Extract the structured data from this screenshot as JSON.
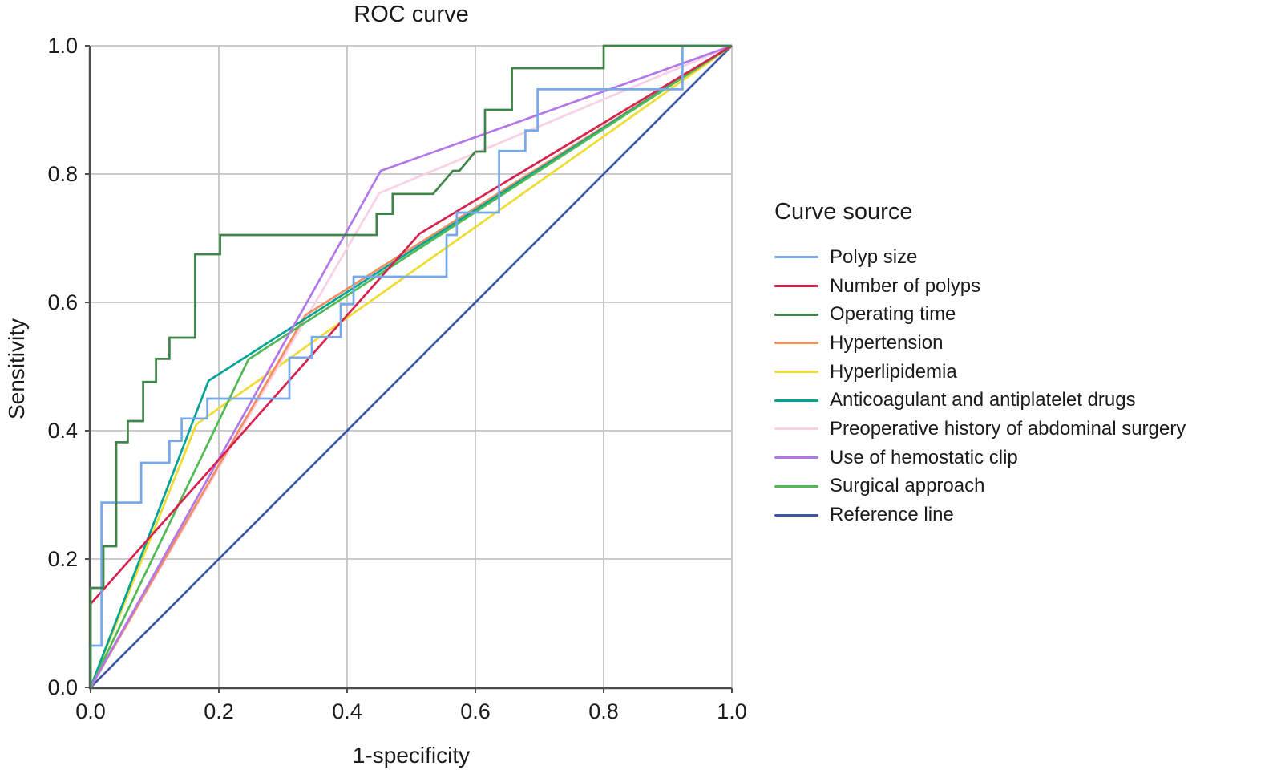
{
  "title": "ROC curve",
  "x_axis": {
    "label": "1-specificity",
    "tick_labels": [
      "0.0",
      "0.2",
      "0.4",
      "0.6",
      "0.8",
      "1.0"
    ]
  },
  "y_axis": {
    "label": "Sensitivity",
    "tick_labels": [
      "0.0",
      "0.2",
      "0.4",
      "0.6",
      "0.8",
      "1.0"
    ]
  },
  "legend": {
    "title": "Curve source",
    "items": [
      {
        "label": "Polyp size",
        "color": "#76A9EC"
      },
      {
        "label": "Number of polyps",
        "color": "#D7224D"
      },
      {
        "label": "Operating time",
        "color": "#3E8547"
      },
      {
        "label": "Hypertension",
        "color": "#F28E62"
      },
      {
        "label": "Hyperlipidemia",
        "color": "#EEDC30"
      },
      {
        "label": "Anticoagulant and antiplatelet drugs",
        "color": "#00A396"
      },
      {
        "label": "Preoperative history of abdominal surgery",
        "color": "#F9D0E4"
      },
      {
        "label": "Use of hemostatic clip",
        "color": "#B377E9"
      },
      {
        "label": "Surgical approach",
        "color": "#52BA55"
      },
      {
        "label": "Reference line",
        "color": "#3A57A7"
      }
    ]
  },
  "style": {
    "grid_color": "#c5c5c5",
    "axis_color": "#4d4d4d",
    "curve_width": 2.7
  },
  "chart_data": {
    "type": "line",
    "title": "ROC curve",
    "xlabel": "1-specificity",
    "ylabel": "Sensitivity",
    "xlim": [
      0,
      1
    ],
    "ylim": [
      0,
      1
    ],
    "grid": true,
    "legend_position": "right",
    "tick_values": [
      0,
      0.2,
      0.4,
      0.6,
      0.8,
      1.0
    ],
    "series": [
      {
        "name": "Reference line",
        "color": "#3A57A7",
        "points": [
          [
            0,
            0
          ],
          [
            1,
            1
          ]
        ]
      },
      {
        "name": "Hyperlipidemia",
        "color": "#EEDC30",
        "points": [
          [
            0,
            0
          ],
          [
            0.165,
            0.41
          ],
          [
            1,
            1
          ]
        ]
      },
      {
        "name": "Preoperative history of abdominal surgery",
        "color": "#F9D0E4",
        "points": [
          [
            0,
            0
          ],
          [
            0.45,
            0.77
          ],
          [
            1,
            1
          ]
        ]
      },
      {
        "name": "Hypertension",
        "color": "#F28E62",
        "points": [
          [
            0,
            0
          ],
          [
            0.335,
            0.58
          ],
          [
            1,
            1
          ]
        ]
      },
      {
        "name": "Anticoagulant and antiplatelet drugs",
        "color": "#00A396",
        "points": [
          [
            0,
            0
          ],
          [
            0.184,
            0.478
          ],
          [
            1,
            1
          ]
        ]
      },
      {
        "name": "Surgical approach",
        "color": "#52BA55",
        "points": [
          [
            0,
            0
          ],
          [
            0.246,
            0.511
          ],
          [
            1,
            1
          ]
        ]
      },
      {
        "name": "Use of hemostatic clip",
        "color": "#B377E9",
        "points": [
          [
            0,
            0
          ],
          [
            0.4525,
            0.805
          ],
          [
            1,
            1
          ]
        ]
      },
      {
        "name": "Number of polyps",
        "color": "#D7224D",
        "points": [
          [
            0,
            0
          ],
          [
            0,
            0.13
          ],
          [
            0.513,
            0.707
          ],
          [
            1,
            1
          ]
        ]
      },
      {
        "name": "Polyp size",
        "color": "#76A9EC",
        "points": [
          [
            0,
            0
          ],
          [
            0,
            0.065
          ],
          [
            0.017,
            0.065
          ],
          [
            0.017,
            0.288
          ],
          [
            0.079,
            0.288
          ],
          [
            0.079,
            0.35
          ],
          [
            0.123,
            0.35
          ],
          [
            0.123,
            0.384
          ],
          [
            0.142,
            0.384
          ],
          [
            0.142,
            0.419
          ],
          [
            0.182,
            0.419
          ],
          [
            0.182,
            0.45
          ],
          [
            0.31,
            0.45
          ],
          [
            0.31,
            0.514
          ],
          [
            0.345,
            0.514
          ],
          [
            0.345,
            0.546
          ],
          [
            0.39,
            0.546
          ],
          [
            0.39,
            0.597
          ],
          [
            0.41,
            0.597
          ],
          [
            0.41,
            0.64
          ],
          [
            0.555,
            0.64
          ],
          [
            0.555,
            0.705
          ],
          [
            0.571,
            0.705
          ],
          [
            0.571,
            0.74
          ],
          [
            0.637,
            0.74
          ],
          [
            0.637,
            0.836
          ],
          [
            0.678,
            0.836
          ],
          [
            0.678,
            0.868
          ],
          [
            0.697,
            0.868
          ],
          [
            0.697,
            0.932
          ],
          [
            0.923,
            0.932
          ],
          [
            0.923,
            1
          ],
          [
            1,
            1
          ]
        ]
      },
      {
        "name": "Operating time",
        "color": "#3E8547",
        "points": [
          [
            0,
            0
          ],
          [
            0,
            0.155
          ],
          [
            0.02,
            0.155
          ],
          [
            0.02,
            0.22
          ],
          [
            0.04,
            0.22
          ],
          [
            0.04,
            0.382
          ],
          [
            0.058,
            0.382
          ],
          [
            0.058,
            0.415
          ],
          [
            0.082,
            0.415
          ],
          [
            0.082,
            0.476
          ],
          [
            0.102,
            0.476
          ],
          [
            0.102,
            0.512
          ],
          [
            0.123,
            0.512
          ],
          [
            0.123,
            0.545
          ],
          [
            0.163,
            0.545
          ],
          [
            0.163,
            0.675
          ],
          [
            0.202,
            0.675
          ],
          [
            0.202,
            0.705
          ],
          [
            0.446,
            0.705
          ],
          [
            0.446,
            0.738
          ],
          [
            0.471,
            0.738
          ],
          [
            0.471,
            0.769
          ],
          [
            0.534,
            0.769
          ],
          [
            0.565,
            0.805
          ],
          [
            0.575,
            0.805
          ],
          [
            0.6,
            0.835
          ],
          [
            0.615,
            0.835
          ],
          [
            0.615,
            0.9
          ],
          [
            0.657,
            0.9
          ],
          [
            0.657,
            0.965
          ],
          [
            0.8,
            0.965
          ],
          [
            0.8,
            1
          ],
          [
            1,
            1
          ]
        ]
      }
    ]
  }
}
